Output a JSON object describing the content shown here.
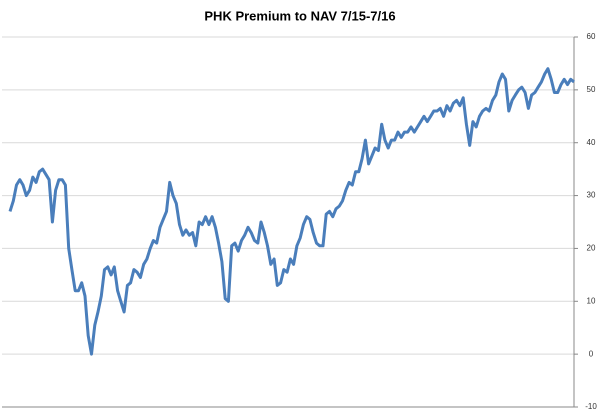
{
  "chart_data": {
    "type": "line",
    "title": "PHK Premium to NAV 7/15-7/16",
    "ylim": [
      -10,
      60
    ],
    "yticks": [
      -10,
      0,
      10,
      20,
      30,
      40,
      50,
      60
    ],
    "grid": true,
    "y_axis_side": "right",
    "series": [
      {
        "name": "PHK Premium to NAV",
        "color": "#4a7ebb",
        "values": [
          27,
          29,
          32,
          33,
          32,
          30,
          31,
          33.5,
          32.5,
          34.5,
          35,
          34,
          33,
          25,
          31,
          33,
          33,
          32,
          20,
          16,
          12,
          12,
          13.5,
          11,
          3.5,
          0,
          5.5,
          8,
          11,
          16,
          16.5,
          15,
          16.5,
          12,
          10,
          8,
          13,
          13.5,
          16,
          15.5,
          14.5,
          17,
          18,
          20,
          21.5,
          21,
          24,
          25.5,
          27,
          32.5,
          30,
          28.5,
          24.5,
          22.5,
          23.5,
          22.5,
          23,
          20.5,
          25,
          24.5,
          26,
          24.5,
          26,
          24,
          21,
          17.5,
          10.5,
          10,
          20.5,
          21,
          19.5,
          21.5,
          22.5,
          24,
          23,
          21.5,
          21,
          25,
          23,
          20.5,
          17,
          18,
          13,
          13.5,
          16,
          15.5,
          18,
          17,
          20.5,
          22,
          24.5,
          26,
          25.5,
          23,
          21,
          20.5,
          20.5,
          26.5,
          27,
          26,
          27.5,
          28,
          29,
          31,
          32.5,
          32,
          34.5,
          34.5,
          37,
          40.5,
          36,
          37.5,
          39,
          38.5,
          43.5,
          40.5,
          39,
          40.5,
          40.5,
          42,
          41,
          42,
          42,
          43,
          42,
          43,
          44,
          45,
          44,
          45,
          46,
          46,
          46.5,
          45,
          47,
          46,
          47.5,
          48,
          47,
          48.5,
          43.5,
          39.5,
          44,
          43,
          45,
          46,
          46.5,
          46,
          48,
          49,
          51.5,
          53,
          52,
          46,
          48,
          49,
          50,
          50.5,
          49.5,
          46.5,
          49,
          49.5,
          50.5,
          51.5,
          53,
          54,
          52,
          49.5,
          49.5,
          51,
          52,
          51,
          52,
          51.5
        ]
      }
    ]
  }
}
